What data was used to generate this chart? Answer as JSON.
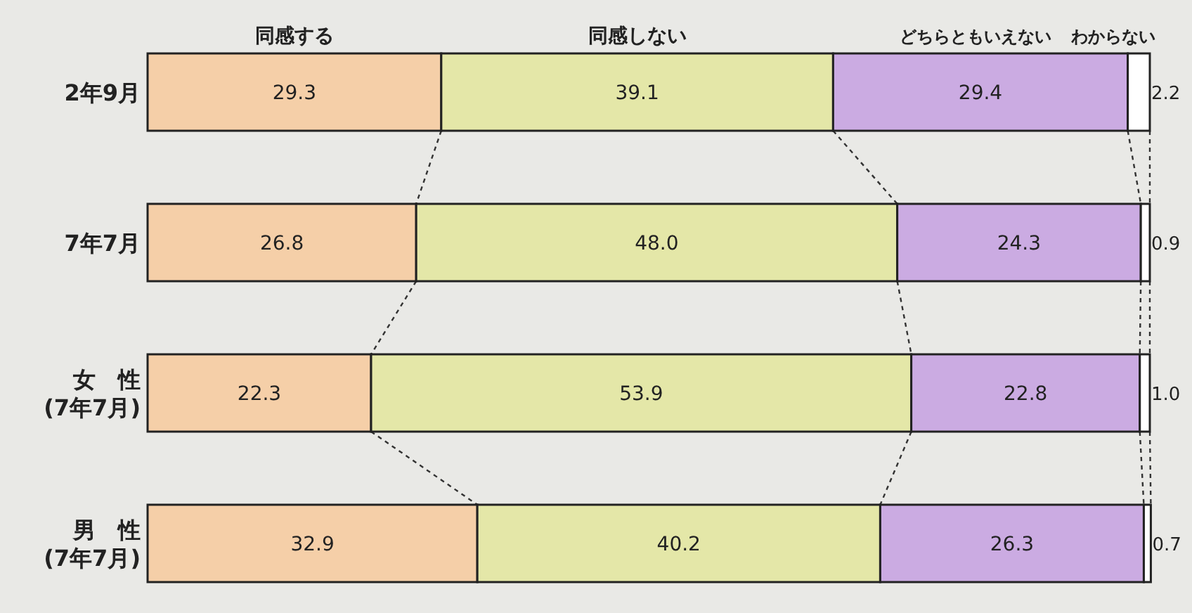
{
  "chart_data": {
    "type": "bar",
    "orientation": "horizontal",
    "stacked": true,
    "legend": "top",
    "categories": [
      "2年9月",
      "7年7月",
      "女　性\n(7年7月)",
      "男　性\n(7年7月)"
    ],
    "xlim": [
      0,
      100
    ],
    "series": [
      {
        "name": "同感する",
        "color": "#f5cfa8",
        "values": [
          29.3,
          26.8,
          22.3,
          32.9
        ],
        "value_labels": [
          "29.3",
          "26.8",
          "22.3",
          "32.9"
        ]
      },
      {
        "name": "同感しない",
        "color": "#e4e7a8",
        "values": [
          39.1,
          48.0,
          53.9,
          40.2
        ],
        "value_labels": [
          "39.1",
          "48.0",
          "53.9",
          "40.2"
        ]
      },
      {
        "name": "どちらともいえない",
        "color": "#cbabe2",
        "values": [
          29.4,
          24.3,
          22.8,
          26.3
        ],
        "value_labels": [
          "29.4",
          "24.3",
          "22.8",
          "26.3"
        ]
      },
      {
        "name": "わからない",
        "color": "#ffffff",
        "values": [
          2.2,
          0.9,
          1.0,
          0.7
        ],
        "value_labels": [
          "2.2",
          "0.9",
          "1.0",
          "0.7"
        ]
      }
    ]
  }
}
